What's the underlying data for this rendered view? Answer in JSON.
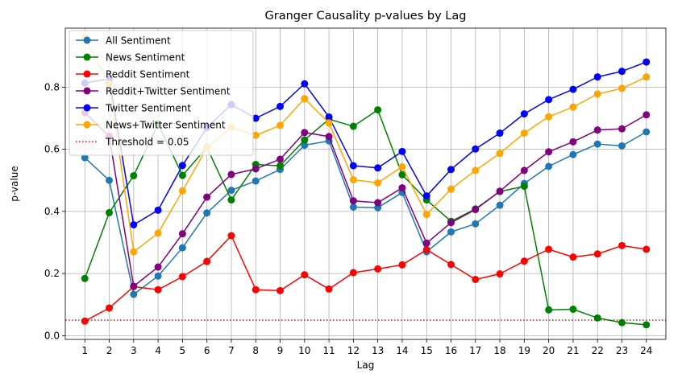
{
  "chart_data": {
    "type": "line",
    "title": "Granger Causality p-values by Lag",
    "xlabel": "Lag",
    "ylabel": "p-value",
    "x": [
      1,
      2,
      3,
      4,
      5,
      6,
      7,
      8,
      9,
      10,
      11,
      12,
      13,
      14,
      15,
      16,
      17,
      18,
      19,
      20,
      21,
      22,
      23,
      24
    ],
    "xlim": [
      0.2,
      24.8
    ],
    "ylim": [
      -0.012,
      0.99
    ],
    "yticks": [
      0.0,
      0.2,
      0.4,
      0.6,
      0.8
    ],
    "ytick_labels": [
      "0.0",
      "0.2",
      "0.4",
      "0.6",
      "0.8"
    ],
    "grid": true,
    "legend_position": "upper left",
    "series": [
      {
        "name": "All Sentiment",
        "color": "#1f77b4",
        "values": [
          0.573,
          0.5,
          0.133,
          0.192,
          0.283,
          0.395,
          0.468,
          0.498,
          0.535,
          0.613,
          0.627,
          0.414,
          0.412,
          0.461,
          0.27,
          0.334,
          0.36,
          0.42,
          0.49,
          0.545,
          0.583,
          0.617,
          0.611,
          0.656
        ]
      },
      {
        "name": "News Sentiment",
        "color": "#008000",
        "values": [
          0.184,
          0.396,
          0.515,
          0.682,
          0.516,
          0.606,
          0.437,
          0.551,
          0.547,
          0.63,
          0.697,
          0.674,
          0.727,
          0.518,
          0.437,
          0.368,
          0.408,
          0.464,
          0.481,
          0.083,
          0.085,
          0.057,
          0.042,
          0.035
        ]
      },
      {
        "name": "Reddit Sentiment",
        "color": "#ff0000",
        "values": [
          0.047,
          0.089,
          0.158,
          0.148,
          0.19,
          0.239,
          0.322,
          0.148,
          0.145,
          0.196,
          0.15,
          0.203,
          0.215,
          0.228,
          0.277,
          0.229,
          0.181,
          0.199,
          0.24,
          0.278,
          0.253,
          0.263,
          0.29,
          0.278
        ]
      },
      {
        "name": "Reddit+Twitter Sentiment",
        "color": "#800080",
        "values": [
          0.718,
          0.642,
          0.159,
          0.221,
          0.328,
          0.446,
          0.519,
          0.537,
          0.568,
          0.654,
          0.641,
          0.434,
          0.428,
          0.476,
          0.298,
          0.364,
          0.406,
          0.465,
          0.532,
          0.592,
          0.624,
          0.662,
          0.666,
          0.711
        ]
      },
      {
        "name": "Twitter Sentiment",
        "color": "#0000ff",
        "values": [
          0.813,
          0.827,
          0.357,
          0.404,
          0.548,
          0.67,
          0.744,
          0.7,
          0.738,
          0.811,
          0.704,
          0.547,
          0.54,
          0.593,
          0.45,
          0.535,
          0.601,
          0.652,
          0.714,
          0.76,
          0.793,
          0.833,
          0.851,
          0.881
        ]
      },
      {
        "name": "News+Twitter Sentiment",
        "color": "#ffa500",
        "values": [
          0.96,
          0.81,
          0.27,
          0.33,
          0.466,
          0.605,
          0.671,
          0.645,
          0.677,
          0.763,
          0.685,
          0.502,
          0.492,
          0.544,
          0.39,
          0.472,
          0.532,
          0.587,
          0.652,
          0.705,
          0.736,
          0.778,
          0.796,
          0.833
        ]
      }
    ],
    "threshold": {
      "name": "Threshold = 0.05",
      "value": 0.05,
      "color": "#ff0000",
      "style": "dotted"
    }
  }
}
